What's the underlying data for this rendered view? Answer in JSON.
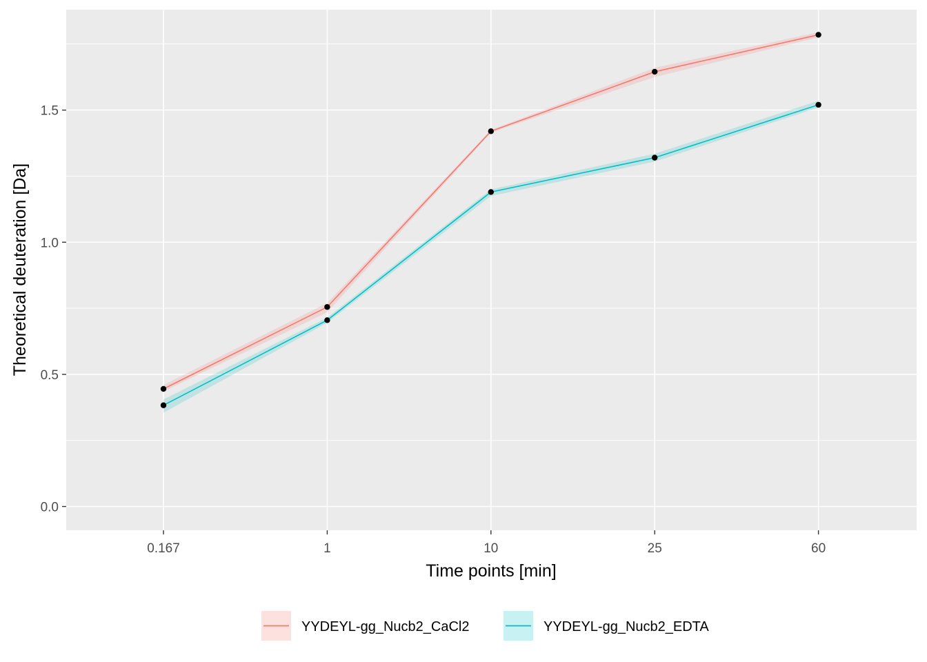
{
  "chart_data": {
    "type": "line",
    "xlabel": "Time points [min]",
    "ylabel": "Theoretical deuteration [Da]",
    "categories": [
      "0.167",
      "1",
      "10",
      "25",
      "60"
    ],
    "ylim": [
      -0.09,
      1.88
    ],
    "yticks": [
      0.0,
      0.5,
      1.0,
      1.5
    ],
    "ytick_labels": [
      "0.0",
      "0.5",
      "1.0",
      "1.5"
    ],
    "grid": true,
    "legend_position": "bottom",
    "series": [
      {
        "name": "YYDEYL-gg_Nucb2_CaCl2",
        "color": "#F8766D",
        "values": [
          0.445,
          0.755,
          1.42,
          1.645,
          1.785
        ],
        "lower": [
          0.435,
          0.735,
          1.415,
          1.625,
          1.775
        ],
        "upper": [
          0.46,
          0.77,
          1.425,
          1.66,
          1.795
        ]
      },
      {
        "name": "YYDEYL-gg_Nucb2_EDTA",
        "color": "#00BFC4",
        "values": [
          0.383,
          0.705,
          1.19,
          1.32,
          1.52
        ],
        "lower": [
          0.355,
          0.695,
          1.175,
          1.305,
          1.51
        ],
        "upper": [
          0.405,
          0.715,
          1.2,
          1.335,
          1.535
        ]
      }
    ]
  }
}
